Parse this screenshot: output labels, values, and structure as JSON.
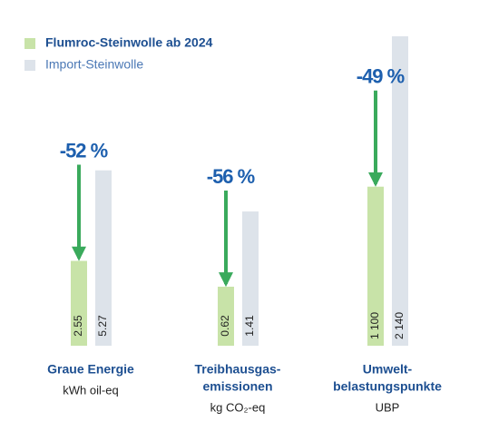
{
  "chart_data": [
    {
      "type": "bar",
      "title": [
        "Graue Energie"
      ],
      "subtitle": "kWh oil-eq",
      "annotation": "-52 %",
      "series": [
        {
          "name": "Flumroc-Steinwolle ab 2024",
          "color": "#c8e3a8",
          "values": [
            2.55
          ]
        },
        {
          "name": "Import-Steinwolle",
          "color": "#dde3ea",
          "values": [
            5.27
          ]
        }
      ],
      "ylim": [
        0,
        9.3
      ]
    },
    {
      "type": "bar",
      "title": [
        "Treibhausgas-",
        "emissionen"
      ],
      "subtitle": "kg CO₂-eq",
      "annotation": "-56 %",
      "series": [
        {
          "name": "Flumroc-Steinwolle ab 2024",
          "color": "#c8e3a8",
          "values": [
            0.62
          ]
        },
        {
          "name": "Import-Steinwolle",
          "color": "#dde3ea",
          "values": [
            1.41
          ]
        }
      ],
      "ylim": [
        0,
        3.25
      ]
    },
    {
      "type": "bar",
      "title": [
        "Umwelt-",
        "belastungspunkte"
      ],
      "subtitle": "UBP",
      "annotation": "-49 %",
      "series": [
        {
          "name": "Flumroc-Steinwolle ab 2024",
          "color": "#c8e3a8",
          "values": [
            1100
          ],
          "value_labels": [
            "1 100"
          ]
        },
        {
          "name": "Import-Steinwolle",
          "color": "#dde3ea",
          "values": [
            2140
          ],
          "value_labels": [
            "2 140"
          ]
        }
      ],
      "ylim": [
        0,
        2140
      ]
    }
  ]
}
